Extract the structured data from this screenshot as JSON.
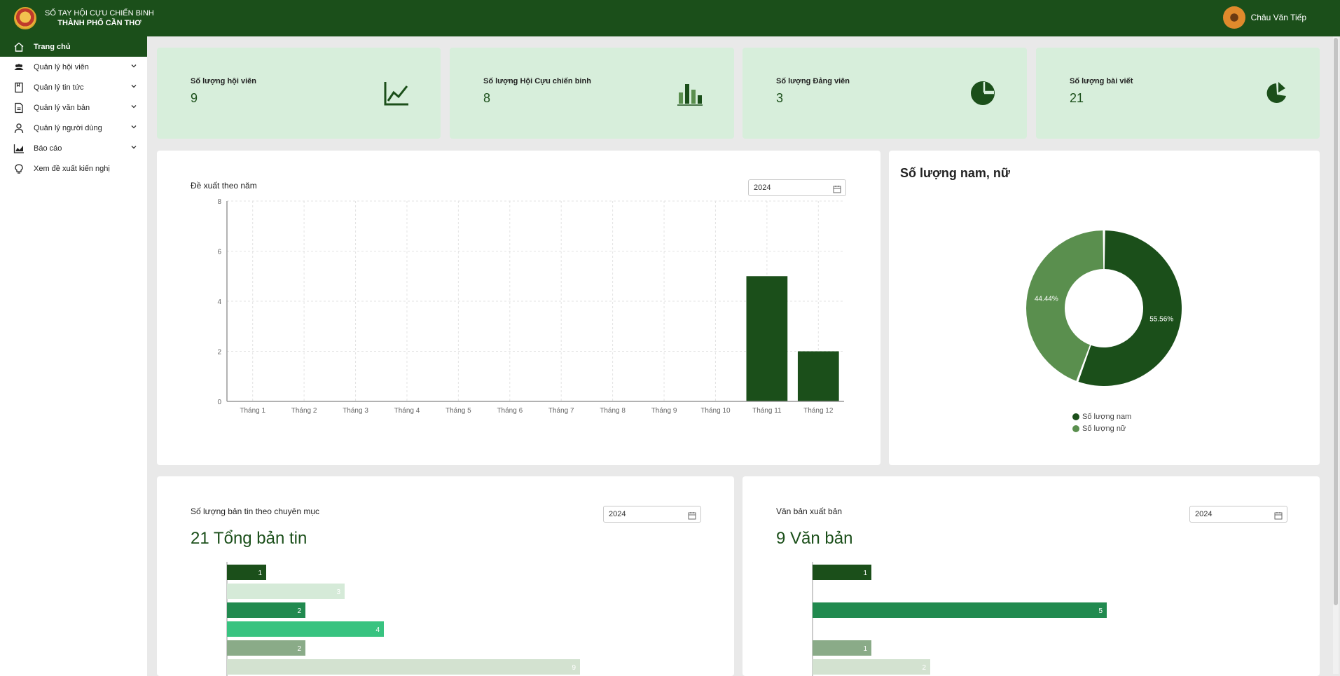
{
  "header": {
    "brand_line1": "SỔ TAY HỘI CỰU CHIẾN BINH",
    "brand_line2": "THÀNH PHỐ CẦN THƠ",
    "user_name": "Châu Văn Tiếp"
  },
  "sidebar": {
    "items": [
      {
        "label": "Trang chủ",
        "icon": "home-icon",
        "active": true
      },
      {
        "label": "Quản lý hội viên",
        "icon": "members-icon",
        "expandable": true
      },
      {
        "label": "Quản lý tin tức",
        "icon": "news-icon",
        "expandable": true
      },
      {
        "label": "Quản lý văn bản",
        "icon": "document-icon",
        "expandable": true
      },
      {
        "label": "Quản lý người dùng",
        "icon": "user-icon",
        "expandable": true
      },
      {
        "label": "Báo cáo",
        "icon": "report-chart-icon",
        "expandable": true
      },
      {
        "label": "Xem đề xuất kiến nghị",
        "icon": "lightbulb-icon"
      }
    ]
  },
  "stats": [
    {
      "label": "Số lượng hội viên",
      "value": "9",
      "icon": "line-chart-icon"
    },
    {
      "label": "Số lượng Hội Cựu chiến binh",
      "value": "8",
      "icon": "bar-chart-icon"
    },
    {
      "label": "Số lượng Đảng viên",
      "value": "3",
      "icon": "pie-chart-icon"
    },
    {
      "label": "Số lượng bài viết",
      "value": "21",
      "icon": "pie-slice-icon"
    }
  ],
  "proposals": {
    "title": "Đề xuất theo năm",
    "year": "2024"
  },
  "gender": {
    "title": "Số lượng nam, nữ"
  },
  "news": {
    "title": "Số lượng bản tin theo chuyên mục",
    "year": "2024",
    "total": "21 Tổng bản tin"
  },
  "docs": {
    "title": "Văn bản xuất bản",
    "year": "2024",
    "total": "9 Văn bản"
  },
  "colors": {
    "primary": "#1b4f1a",
    "stat_bg": "#d7eedb",
    "female": "#5a8f4e"
  },
  "chart_data": [
    {
      "type": "bar",
      "categories": [
        "Tháng 1",
        "Tháng 2",
        "Tháng 3",
        "Tháng 4",
        "Tháng 5",
        "Tháng 6",
        "Tháng 7",
        "Tháng 8",
        "Tháng 9",
        "Tháng 10",
        "Tháng 11",
        "Tháng 12"
      ],
      "values": [
        0,
        0,
        0,
        0,
        0,
        0,
        0,
        0,
        0,
        0,
        5,
        2
      ],
      "yticks": [
        "0",
        "2",
        "4",
        "6",
        "8"
      ],
      "ylim": [
        0,
        8
      ],
      "grid": true
    },
    {
      "type": "pie",
      "donut": true,
      "labels": [
        "Số lượng nam",
        "Số lượng nữ"
      ],
      "values": [
        55.56,
        44.44
      ],
      "value_labels": [
        "55.56%",
        "44.44%"
      ],
      "colors": [
        "#1b4f1a",
        "#5a8f4e"
      ],
      "legend": "bottom"
    },
    {
      "type": "bar",
      "orientation": "horizontal",
      "values": [
        1,
        3,
        2,
        4,
        2,
        9
      ],
      "colors": [
        "#1b4f1a",
        "#d5ead8",
        "#218a4f",
        "#38c380",
        "#8aab88",
        "#d3e2d0"
      ],
      "xlim": [
        0,
        9
      ]
    },
    {
      "type": "bar",
      "orientation": "horizontal",
      "values": [
        1,
        0,
        5,
        0,
        1,
        2
      ],
      "colors": [
        "#1b4f1a",
        "#d5ead8",
        "#218a4f",
        "#38c380",
        "#8aab88",
        "#d3e2d0"
      ],
      "xlim": [
        0,
        5
      ]
    }
  ]
}
